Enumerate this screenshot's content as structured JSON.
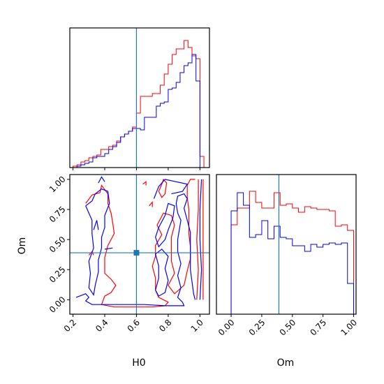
{
  "chart_data": {
    "type": "corner",
    "title": "",
    "parameters": [
      "H0",
      "Om"
    ],
    "truth": {
      "H0": 0.6,
      "Om": 0.39
    },
    "truth_color": "#1f77b4",
    "series": [
      {
        "color": "#ff0000"
      },
      {
        "color": "#0000ff"
      }
    ],
    "panels": [
      {
        "id": "hist-h0",
        "type": "step-histogram",
        "xlim": [
          0.18,
          1.06
        ],
        "xticks": [
          0.2,
          0.4,
          0.6,
          0.8,
          1.0
        ],
        "ylim": [
          0,
          1.0
        ],
        "edges": [
          0.2,
          0.225,
          0.25,
          0.275,
          0.3,
          0.325,
          0.35,
          0.375,
          0.4,
          0.425,
          0.45,
          0.475,
          0.5,
          0.525,
          0.55,
          0.575,
          0.6,
          0.625,
          0.65,
          0.675,
          0.7,
          0.725,
          0.75,
          0.775,
          0.8,
          0.825,
          0.85,
          0.875,
          0.9,
          0.925,
          0.95,
          0.975,
          1.0,
          1.025
        ],
        "series_values": [
          [
            0.01,
            0.02,
            0.04,
            0.05,
            0.07,
            0.08,
            0.09,
            0.13,
            0.13,
            0.15,
            0.16,
            0.19,
            0.22,
            0.24,
            0.26,
            0.29,
            0.39,
            0.51,
            0.51,
            0.51,
            0.53,
            0.53,
            0.59,
            0.67,
            0.74,
            0.81,
            0.85,
            0.85,
            0.91,
            0.86,
            0.8,
            0.78,
            0.08
          ],
          [
            0.0,
            0.01,
            0.02,
            0.03,
            0.04,
            0.07,
            0.08,
            0.08,
            0.1,
            0.13,
            0.15,
            0.18,
            0.22,
            0.24,
            0.26,
            0.28,
            0.28,
            0.27,
            0.36,
            0.36,
            0.36,
            0.44,
            0.46,
            0.47,
            0.56,
            0.57,
            0.61,
            0.68,
            0.73,
            0.75,
            0.81,
            0.62,
            0.0
          ]
        ]
      },
      {
        "id": "contour-h0-om",
        "type": "contour",
        "xlim": [
          0.18,
          1.06
        ],
        "ylim": [
          -0.12,
          1.04
        ],
        "xticks": [
          0.2,
          0.4,
          0.6,
          0.8,
          1.0
        ],
        "yticks": [
          0.0,
          0.25,
          0.5,
          0.75,
          1.0
        ],
        "xlabel": "H0",
        "ylabel": "Om",
        "series_contours": [
          [
            [
              [
                0.28,
                0.8
              ],
              [
                0.32,
                0.87
              ],
              [
                0.37,
                0.89
              ],
              [
                0.38,
                0.95
              ],
              [
                0.42,
                0.88
              ],
              [
                0.42,
                0.8
              ],
              [
                0.44,
                0.72
              ],
              [
                0.45,
                0.64
              ],
              [
                0.46,
                0.55
              ],
              [
                0.42,
                0.45
              ],
              [
                0.4,
                0.35
              ],
              [
                0.4,
                0.22
              ],
              [
                0.44,
                0.17
              ],
              [
                0.47,
                0.12
              ],
              [
                0.44,
                0.06
              ],
              [
                0.4,
                0.03
              ],
              [
                0.38,
                -0.04
              ],
              [
                0.46,
                -0.06
              ],
              [
                0.58,
                -0.06
              ],
              [
                0.7,
                -0.06
              ],
              [
                0.78,
                -0.05
              ],
              [
                0.8,
                -0.02
              ],
              [
                0.74,
                0.02
              ],
              [
                0.72,
                0.08
              ],
              [
                0.72,
                0.18
              ],
              [
                0.7,
                0.28
              ],
              [
                0.72,
                0.36
              ],
              [
                0.72,
                0.45
              ],
              [
                0.76,
                0.54
              ],
              [
                0.73,
                0.62
              ],
              [
                0.77,
                0.72
              ],
              [
                0.82,
                0.7
              ],
              [
                0.84,
                0.62
              ],
              [
                0.82,
                0.52
              ],
              [
                0.82,
                0.42
              ],
              [
                0.82,
                0.32
              ],
              [
                0.84,
                0.22
              ],
              [
                0.8,
                0.12
              ],
              [
                0.84,
                0.05
              ],
              [
                0.9,
                0.12
              ],
              [
                0.92,
                0.24
              ],
              [
                0.94,
                0.34
              ],
              [
                0.94,
                0.44
              ],
              [
                0.93,
                0.55
              ],
              [
                0.93,
                0.65
              ],
              [
                0.93,
                0.75
              ],
              [
                0.92,
                0.85
              ],
              [
                0.92,
                0.95
              ],
              [
                0.94,
                1.0
              ],
              [
                0.97,
                1.0
              ]
            ],
            [
              [
                0.3,
                0.37
              ],
              [
                0.32,
                0.4
              ],
              [
                0.33,
                0.37
              ]
            ],
            [
              [
                0.64,
                0.96
              ],
              [
                0.66,
                0.98
              ],
              [
                0.66,
                0.95
              ]
            ],
            [
              [
                0.68,
                0.78
              ],
              [
                0.7,
                0.81
              ],
              [
                0.7,
                0.77
              ]
            ],
            [
              [
                0.76,
                0.96
              ],
              [
                0.77,
                1.0
              ],
              [
                0.79,
                0.97
              ],
              [
                0.78,
                0.88
              ],
              [
                0.76,
                0.85
              ],
              [
                0.74,
                0.9
              ],
              [
                0.76,
                0.96
              ]
            ],
            [
              [
                0.98,
                0.0
              ],
              [
                0.99,
                0.25
              ],
              [
                0.98,
                0.5
              ],
              [
                0.99,
                0.75
              ],
              [
                0.99,
                1.0
              ]
            ],
            [
              [
                1.02,
                0.0
              ],
              [
                1.02,
                0.3
              ],
              [
                1.02,
                0.6
              ],
              [
                1.02,
                1.0
              ]
            ]
          ],
          [
            [
              [
                0.22,
                0.02
              ],
              [
                0.28,
                0.05
              ],
              [
                0.3,
                0.02
              ],
              [
                0.28,
                -0.01
              ],
              [
                0.32,
                -0.04
              ],
              [
                0.5,
                -0.04
              ],
              [
                0.65,
                -0.04
              ],
              [
                0.78,
                -0.05
              ],
              [
                0.9,
                -0.05
              ],
              [
                0.89,
                -0.02
              ],
              [
                0.86,
                0.02
              ],
              [
                0.88,
                0.1
              ],
              [
                0.86,
                0.2
              ],
              [
                0.88,
                0.3
              ],
              [
                0.86,
                0.4
              ],
              [
                0.86,
                0.5
              ],
              [
                0.87,
                0.58
              ],
              [
                0.88,
                0.66
              ],
              [
                0.86,
                0.72
              ],
              [
                0.85,
                0.8
              ],
              [
                0.86,
                0.86
              ],
              [
                0.9,
                0.88
              ],
              [
                0.92,
                0.84
              ],
              [
                0.9,
                0.76
              ],
              [
                0.92,
                0.66
              ],
              [
                0.94,
                0.56
              ],
              [
                0.94,
                0.45
              ],
              [
                0.94,
                0.35
              ],
              [
                0.94,
                0.25
              ],
              [
                0.95,
                0.15
              ],
              [
                0.96,
                0.05
              ],
              [
                0.97,
                0.0
              ]
            ],
            [
              [
                0.28,
                0.78
              ],
              [
                0.32,
                0.82
              ],
              [
                0.34,
                0.88
              ],
              [
                0.38,
                0.92
              ],
              [
                0.42,
                0.9
              ],
              [
                0.43,
                0.8
              ],
              [
                0.4,
                0.7
              ],
              [
                0.4,
                0.6
              ],
              [
                0.38,
                0.52
              ],
              [
                0.38,
                0.43
              ],
              [
                0.36,
                0.33
              ],
              [
                0.36,
                0.23
              ],
              [
                0.34,
                0.12
              ],
              [
                0.33,
                0.04
              ],
              [
                0.3,
                0.1
              ],
              [
                0.31,
                0.22
              ],
              [
                0.3,
                0.32
              ],
              [
                0.33,
                0.43
              ],
              [
                0.32,
                0.55
              ],
              [
                0.32,
                0.66
              ],
              [
                0.3,
                0.72
              ],
              [
                0.28,
                0.78
              ]
            ],
            [
              [
                0.36,
                0.97
              ],
              [
                0.38,
                1.02
              ],
              [
                0.4,
                0.98
              ]
            ],
            [
              [
                0.33,
                0.58
              ],
              [
                0.35,
                0.66
              ],
              [
                0.36,
                0.58
              ]
            ],
            [
              [
                0.4,
                0.42
              ],
              [
                0.45,
                0.43
              ]
            ],
            [
              [
                0.74,
                0.6
              ],
              [
                0.78,
                0.7
              ],
              [
                0.8,
                0.8
              ],
              [
                0.84,
                0.78
              ],
              [
                0.83,
                0.68
              ],
              [
                0.8,
                0.58
              ],
              [
                0.78,
                0.5
              ],
              [
                0.74,
                0.44
              ],
              [
                0.72,
                0.52
              ],
              [
                0.74,
                0.6
              ]
            ],
            [
              [
                0.72,
                0.08
              ],
              [
                0.74,
                0.18
              ],
              [
                0.74,
                0.28
              ],
              [
                0.72,
                0.38
              ],
              [
                0.76,
                0.42
              ],
              [
                0.8,
                0.36
              ],
              [
                0.78,
                0.26
              ],
              [
                0.8,
                0.16
              ],
              [
                0.78,
                0.06
              ],
              [
                0.74,
                0.03
              ],
              [
                0.72,
                0.08
              ]
            ],
            [
              [
                0.71,
                0.84
              ],
              [
                0.74,
                0.94
              ],
              [
                0.78,
                1.0
              ],
              [
                0.85,
                0.98
              ],
              [
                0.92,
                0.96
              ],
              [
                0.89,
                0.9
              ],
              [
                0.82,
                0.88
              ]
            ],
            [
              [
                1.0,
                0.0
              ],
              [
                1.01,
                0.25
              ],
              [
                1.0,
                0.5
              ],
              [
                1.0,
                0.75
              ],
              [
                1.01,
                1.0
              ]
            ]
          ]
        ]
      },
      {
        "id": "hist-om",
        "type": "step-histogram",
        "xlim": [
          -0.12,
          1.02
        ],
        "xticks": [
          0.0,
          0.25,
          0.5,
          0.75,
          1.0
        ],
        "xlabel": "Om",
        "ylim": [
          0,
          1.0
        ],
        "edges": [
          -0.1,
          -0.05,
          0.0,
          0.05,
          0.1,
          0.15,
          0.2,
          0.25,
          0.3,
          0.35,
          0.4,
          0.45,
          0.5,
          0.55,
          0.6,
          0.65,
          0.7,
          0.75,
          0.8,
          0.85,
          0.9,
          0.95,
          1.0
        ],
        "series_values": [
          [
            0.0,
            0.0,
            0.64,
            0.76,
            0.76,
            0.88,
            0.8,
            0.76,
            0.76,
            0.87,
            0.78,
            0.79,
            0.76,
            0.73,
            0.77,
            0.76,
            0.75,
            0.75,
            0.74,
            0.63,
            0.64,
            0.6
          ],
          [
            0.0,
            0.0,
            0.74,
            0.87,
            0.78,
            0.55,
            0.57,
            0.67,
            0.54,
            0.63,
            0.55,
            0.54,
            0.49,
            0.49,
            0.45,
            0.5,
            0.48,
            0.5,
            0.51,
            0.5,
            0.51,
            0.22
          ]
        ]
      }
    ]
  }
}
